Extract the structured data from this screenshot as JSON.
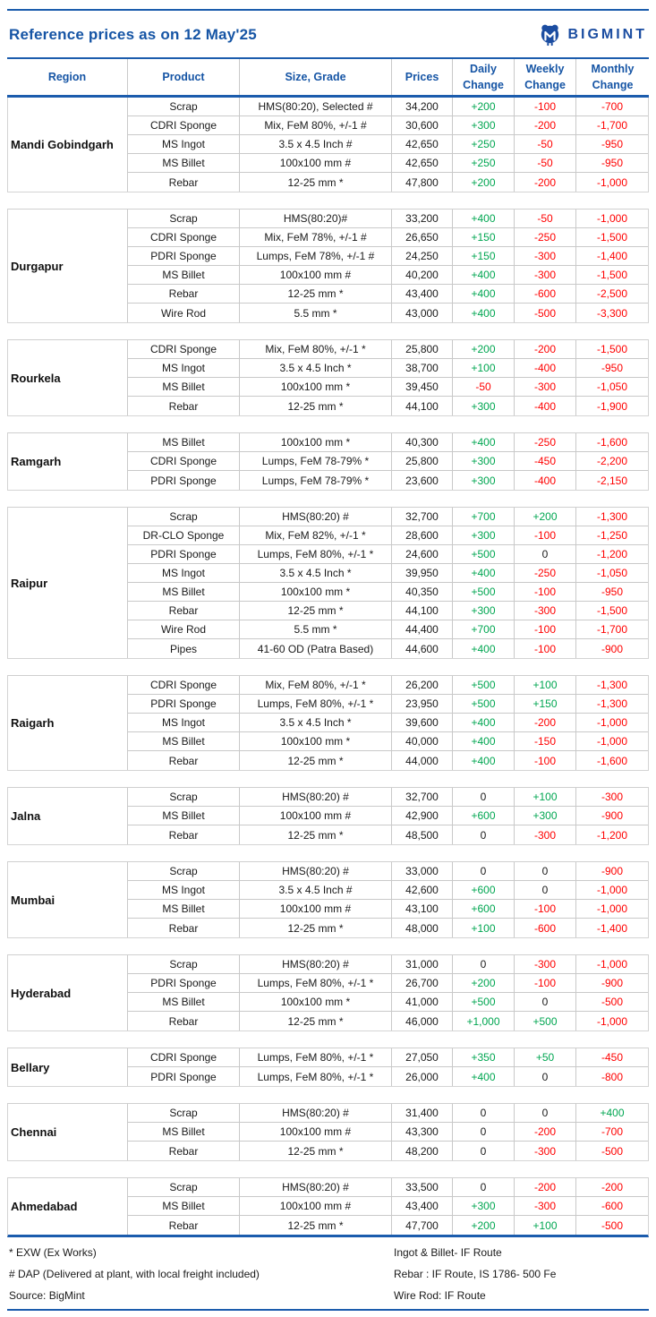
{
  "header": {
    "title": "Reference prices as on 12 May'25",
    "brand": "BIGMINT"
  },
  "colors": {
    "brand_blue": "#1655A5",
    "line_blue": "#1B5CAD",
    "positive_green": "#00A651",
    "negative_red": "#FF0000",
    "neutral_black": "#1A1A1A"
  },
  "columns": [
    {
      "label": "Region"
    },
    {
      "label": "Product"
    },
    {
      "label": "Size, Grade"
    },
    {
      "label": "Prices"
    },
    {
      "line1": "Daily",
      "line2": "Change"
    },
    {
      "line1": "Weekly",
      "line2": "Change"
    },
    {
      "line1": "Monthly",
      "line2": "Change"
    }
  ],
  "table": {
    "sections": [
      {
        "region": "Mandi Gobindgarh",
        "rows": [
          [
            "Scrap",
            "HMS(80:20), Selected #",
            "34,200",
            "+200",
            "-100",
            "-700"
          ],
          [
            "CDRI Sponge",
            "Mix, FeM 80%, +/-1 #",
            "30,600",
            "+300",
            "-200",
            "-1,700"
          ],
          [
            "MS Ingot",
            "3.5 x 4.5 Inch #",
            "42,650",
            "+250",
            "-50",
            "-950"
          ],
          [
            "MS Billet",
            "100x100 mm #",
            "42,650",
            "+250",
            "-50",
            "-950"
          ],
          [
            "Rebar",
            "12-25 mm *",
            "47,800",
            "+200",
            "-200",
            "-1,000"
          ]
        ]
      },
      {
        "region": "Durgapur",
        "rows": [
          [
            "Scrap",
            "HMS(80:20)#",
            "33,200",
            "+400",
            "-50",
            "-1,000"
          ],
          [
            "CDRI Sponge",
            "Mix, FeM 78%, +/-1 #",
            "26,650",
            "+150",
            "-250",
            "-1,500"
          ],
          [
            "PDRI Sponge",
            "Lumps, FeM 78%, +/-1 #",
            "24,250",
            "+150",
            "-300",
            "-1,400"
          ],
          [
            "MS Billet",
            "100x100 mm #",
            "40,200",
            "+400",
            "-300",
            "-1,500"
          ],
          [
            "Rebar",
            "12-25 mm *",
            "43,400",
            "+400",
            "-600",
            "-2,500"
          ],
          [
            "Wire Rod",
            "5.5 mm *",
            "43,000",
            "+400",
            "-500",
            "-3,300"
          ]
        ]
      },
      {
        "region": "Rourkela",
        "rows": [
          [
            "CDRI Sponge",
            "Mix, FeM 80%, +/-1 *",
            "25,800",
            "+200",
            "-200",
            "-1,500"
          ],
          [
            "MS Ingot",
            "3.5 x 4.5 Inch *",
            "38,700",
            "+100",
            "-400",
            "-950"
          ],
          [
            "MS Billet",
            "100x100 mm *",
            "39,450",
            "-50",
            "-300",
            "-1,050"
          ],
          [
            "Rebar",
            "12-25 mm *",
            "44,100",
            "+300",
            "-400",
            "-1,900"
          ]
        ]
      },
      {
        "region": "Ramgarh",
        "rows": [
          [
            "MS Billet",
            "100x100 mm *",
            "40,300",
            "+400",
            "-250",
            "-1,600"
          ],
          [
            "CDRI Sponge",
            "Lumps, FeM 78-79% *",
            "25,800",
            "+300",
            "-450",
            "-2,200"
          ],
          [
            "PDRI Sponge",
            "Lumps, FeM 78-79% *",
            "23,600",
            "+300",
            "-400",
            "-2,150"
          ]
        ]
      },
      {
        "region": "Raipur",
        "rows": [
          [
            "Scrap",
            "HMS(80:20) #",
            "32,700",
            "+700",
            "+200",
            "-1,300"
          ],
          [
            "DR-CLO Sponge",
            "Mix, FeM 82%, +/-1 *",
            "28,600",
            "+300",
            "-100",
            "-1,250"
          ],
          [
            "PDRI Sponge",
            "Lumps, FeM 80%, +/-1 *",
            "24,600",
            "+500",
            "0",
            "-1,200"
          ],
          [
            "MS Ingot",
            "3.5 x 4.5 Inch *",
            "39,950",
            "+400",
            "-250",
            "-1,050"
          ],
          [
            "MS Billet",
            "100x100 mm *",
            "40,350",
            "+500",
            "-100",
            "-950"
          ],
          [
            "Rebar",
            "12-25 mm *",
            "44,100",
            "+300",
            "-300",
            "-1,500"
          ],
          [
            "Wire Rod",
            "5.5 mm *",
            "44,400",
            "+700",
            "-100",
            "-1,700"
          ],
          [
            "Pipes",
            "41-60 OD (Patra Based)",
            "44,600",
            "+400",
            "-100",
            "-900"
          ]
        ]
      },
      {
        "region": "Raigarh",
        "rows": [
          [
            "CDRI Sponge",
            "Mix, FeM 80%, +/-1 *",
            "26,200",
            "+500",
            "+100",
            "-1,300"
          ],
          [
            "PDRI Sponge",
            "Lumps, FeM 80%, +/-1 *",
            "23,950",
            "+500",
            "+150",
            "-1,300"
          ],
          [
            "MS Ingot",
            "3.5 x 4.5 Inch *",
            "39,600",
            "+400",
            "-200",
            "-1,000"
          ],
          [
            "MS Billet",
            "100x100 mm *",
            "40,000",
            "+400",
            "-150",
            "-1,000"
          ],
          [
            "Rebar",
            "12-25 mm *",
            "44,000",
            "+400",
            "-100",
            "-1,600"
          ]
        ]
      },
      {
        "region": "Jalna",
        "rows": [
          [
            "Scrap",
            "HMS(80:20) #",
            "32,700",
            "0",
            "+100",
            "-300"
          ],
          [
            "MS Billet",
            "100x100 mm #",
            "42,900",
            "+600",
            "+300",
            "-900"
          ],
          [
            "Rebar",
            "12-25 mm *",
            "48,500",
            "0",
            "-300",
            "-1,200"
          ]
        ]
      },
      {
        "region": "Mumbai",
        "rows": [
          [
            "Scrap",
            "HMS(80:20) #",
            "33,000",
            "0",
            "0",
            "-900"
          ],
          [
            "MS Ingot",
            "3.5 x 4.5 Inch #",
            "42,600",
            "+600",
            "0",
            "-1,000"
          ],
          [
            "MS Billet",
            "100x100 mm #",
            "43,100",
            "+600",
            "-100",
            "-1,000"
          ],
          [
            "Rebar",
            "12-25 mm *",
            "48,000",
            "+100",
            "-600",
            "-1,400"
          ]
        ]
      },
      {
        "region": "Hyderabad",
        "rows": [
          [
            "Scrap",
            "HMS(80:20) #",
            "31,000",
            "0",
            "-300",
            "-1,000"
          ],
          [
            "PDRI Sponge",
            "Lumps, FeM 80%, +/-1 *",
            "26,700",
            "+200",
            "-100",
            "-900"
          ],
          [
            "MS Billet",
            "100x100 mm *",
            "41,000",
            "+500",
            "0",
            "-500"
          ],
          [
            "Rebar",
            "12-25 mm *",
            "46,000",
            "+1,000",
            "+500",
            "-1,000"
          ]
        ]
      },
      {
        "region": "Bellary",
        "rows": [
          [
            "CDRI Sponge",
            "Lumps, FeM 80%, +/-1 *",
            "27,050",
            "+350",
            "+50",
            "-450"
          ],
          [
            "PDRI Sponge",
            "Lumps, FeM 80%, +/-1 *",
            "26,000",
            "+400",
            "0",
            "-800"
          ]
        ]
      },
      {
        "region": "Chennai",
        "rows": [
          [
            "Scrap",
            "HMS(80:20) #",
            "31,400",
            "0",
            "0",
            "+400"
          ],
          [
            "MS Billet",
            "100x100 mm #",
            "43,300",
            "0",
            "-200",
            "-700"
          ],
          [
            "Rebar",
            "12-25 mm *",
            "48,200",
            "0",
            "-300",
            "-500"
          ]
        ]
      },
      {
        "region": "Ahmedabad",
        "rows": [
          [
            "Scrap",
            "HMS(80:20) #",
            "33,500",
            "0",
            "-200",
            "-200"
          ],
          [
            "MS Billet",
            "100x100 mm #",
            "43,400",
            "+300",
            "-300",
            "-600"
          ],
          [
            "Rebar",
            "12-25 mm *",
            "47,700",
            "+200",
            "+100",
            "-500"
          ]
        ]
      }
    ]
  },
  "footnotes": {
    "left": [
      "* EXW (Ex Works)",
      "# DAP (Delivered at plant, with local freight included)",
      "Source: BigMint"
    ],
    "right": [
      "Ingot & Billet- IF Route",
      "Rebar : IF Route, IS 1786- 500 Fe",
      "Wire Rod: IF Route"
    ]
  }
}
